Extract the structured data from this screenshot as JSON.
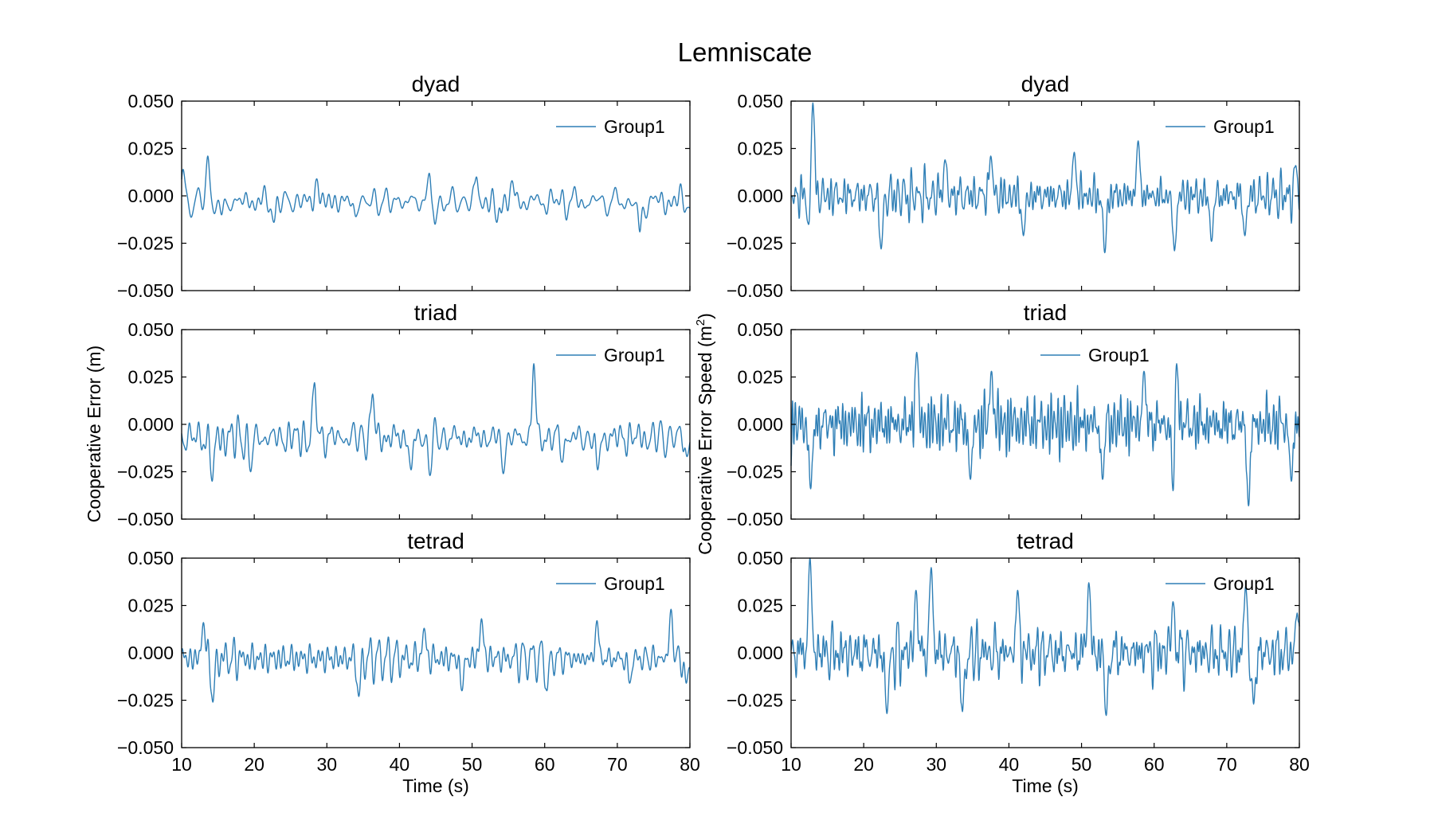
{
  "figure": {
    "suptitle": "Lemniscate",
    "left_ylabel": "Cooperative Error (m)",
    "right_ylabel": "Cooperative Error Speed (m",
    "right_ylabel_sup": "2",
    "right_ylabel_end": ")",
    "xlabel": "Time (s)"
  },
  "colors": {
    "series": "#2f7fb6",
    "axes": "#000000",
    "background": "#ffffff"
  },
  "chart_data": [
    {
      "type": "line",
      "title": "dyad",
      "column": "left",
      "row": 0,
      "xlim": [
        10,
        80
      ],
      "ylim": [
        -0.05,
        0.05
      ],
      "xticks": [
        10,
        20,
        30,
        40,
        50,
        60,
        70,
        80
      ],
      "yticks": [
        -0.05,
        -0.025,
        0.0,
        0.025,
        0.05
      ],
      "ytick_labels": [
        "−0.050",
        "−0.025",
        "0.000",
        "0.025",
        "0.050"
      ],
      "legend": "upper right",
      "grid": false,
      "series": [
        {
          "name": "Group1",
          "color": "#2f7fb6",
          "amplitude": 0.006,
          "offset": -0.003,
          "freq_scale": 1.0,
          "seed": 11,
          "spikes": [
            [
              10.2,
              0.014
            ],
            [
              13.6,
              0.021
            ],
            [
              15.5,
              -0.01
            ],
            [
              22.7,
              -0.014
            ],
            [
              28.6,
              0.009
            ],
            [
              34.0,
              -0.011
            ],
            [
              44.1,
              0.012
            ],
            [
              44.9,
              -0.015
            ],
            [
              50.6,
              0.01
            ],
            [
              53.4,
              -0.014
            ],
            [
              55.5,
              0.008
            ],
            [
              73.1,
              -0.019
            ],
            [
              79.8,
              -0.006
            ]
          ]
        }
      ]
    },
    {
      "type": "line",
      "title": "dyad",
      "column": "right",
      "row": 0,
      "xlim": [
        10,
        80
      ],
      "ylim": [
        -0.05,
        0.05
      ],
      "xticks": [
        10,
        20,
        30,
        40,
        50,
        60,
        70,
        80
      ],
      "yticks": [
        -0.05,
        -0.025,
        0.0,
        0.025,
        0.05
      ],
      "ytick_labels": [
        "−0.050",
        "−0.025",
        "0.000",
        "0.025",
        "0.050"
      ],
      "legend": "upper right",
      "grid": false,
      "series": [
        {
          "name": "Group1",
          "color": "#2f7fb6",
          "amplitude": 0.009,
          "offset": 0.0,
          "freq_scale": 1.8,
          "seed": 23,
          "spikes": [
            [
              12.5,
              -0.019
            ],
            [
              13.0,
              0.049
            ],
            [
              22.4,
              -0.028
            ],
            [
              31.2,
              0.019
            ],
            [
              37.5,
              0.021
            ],
            [
              42.0,
              -0.021
            ],
            [
              49.0,
              0.023
            ],
            [
              53.2,
              -0.03
            ],
            [
              57.8,
              0.029
            ],
            [
              62.8,
              -0.029
            ],
            [
              67.9,
              -0.024
            ],
            [
              72.5,
              -0.021
            ],
            [
              79.5,
              0.016
            ]
          ]
        }
      ]
    },
    {
      "type": "line",
      "title": "triad",
      "column": "left",
      "row": 1,
      "xlim": [
        10,
        80
      ],
      "ylim": [
        -0.05,
        0.05
      ],
      "xticks": [
        10,
        20,
        30,
        40,
        50,
        60,
        70,
        80
      ],
      "yticks": [
        -0.05,
        -0.025,
        0.0,
        0.025,
        0.05
      ],
      "ytick_labels": [
        "−0.050",
        "−0.025",
        "0.000",
        "0.025",
        "0.050"
      ],
      "legend": "upper right",
      "grid": false,
      "series": [
        {
          "name": "Group1",
          "color": "#2f7fb6",
          "amplitude": 0.009,
          "offset": -0.007,
          "freq_scale": 1.2,
          "seed": 37,
          "spikes": [
            [
              14.2,
              -0.03
            ],
            [
              19.5,
              -0.025
            ],
            [
              28.3,
              0.022
            ],
            [
              36.3,
              0.016
            ],
            [
              41.6,
              -0.024
            ],
            [
              44.2,
              -0.027
            ],
            [
              54.3,
              -0.026
            ],
            [
              58.5,
              0.032
            ],
            [
              62.4,
              -0.02
            ],
            [
              67.3,
              -0.024
            ],
            [
              79.6,
              -0.017
            ]
          ]
        }
      ]
    },
    {
      "type": "line",
      "title": "triad",
      "column": "right",
      "row": 1,
      "xlim": [
        10,
        80
      ],
      "ylim": [
        -0.05,
        0.05
      ],
      "xticks": [
        10,
        20,
        30,
        40,
        50,
        60,
        70,
        80
      ],
      "yticks": [
        -0.05,
        -0.025,
        0.0,
        0.025,
        0.05
      ],
      "ytick_labels": [
        "−0.050",
        "−0.025",
        "0.000",
        "0.025",
        "0.050"
      ],
      "legend": "upper center",
      "grid": false,
      "series": [
        {
          "name": "Group1",
          "color": "#2f7fb6",
          "amplitude": 0.012,
          "offset": 0.0,
          "freq_scale": 2.0,
          "seed": 41,
          "spikes": [
            [
              12.7,
              -0.034
            ],
            [
              27.3,
              0.038
            ],
            [
              34.7,
              -0.029
            ],
            [
              37.6,
              0.028
            ],
            [
              52.9,
              -0.029
            ],
            [
              58.6,
              0.028
            ],
            [
              62.7,
              -0.046
            ],
            [
              63.1,
              0.032
            ],
            [
              73.0,
              -0.043
            ],
            [
              78.9,
              -0.03
            ]
          ]
        }
      ]
    },
    {
      "type": "line",
      "title": "tetrad",
      "column": "left",
      "row": 2,
      "xlim": [
        10,
        80
      ],
      "ylim": [
        -0.05,
        0.05
      ],
      "xticks": [
        10,
        20,
        30,
        40,
        50,
        60,
        70,
        80
      ],
      "yticks": [
        -0.05,
        -0.025,
        0.0,
        0.025,
        0.05
      ],
      "ytick_labels": [
        "−0.050",
        "−0.025",
        "0.000",
        "0.025",
        "0.050"
      ],
      "legend": "upper right",
      "grid": false,
      "series": [
        {
          "name": "Group1",
          "color": "#2f7fb6",
          "amplitude": 0.008,
          "offset": -0.003,
          "freq_scale": 1.5,
          "seed": 53,
          "spikes": [
            [
              13.0,
              0.016
            ],
            [
              14.3,
              -0.026
            ],
            [
              34.4,
              -0.023
            ],
            [
              43.4,
              0.013
            ],
            [
              48.6,
              -0.02
            ],
            [
              51.3,
              0.018
            ],
            [
              60.3,
              -0.02
            ],
            [
              67.2,
              0.017
            ],
            [
              71.7,
              -0.016
            ],
            [
              77.4,
              0.023
            ],
            [
              79.5,
              -0.016
            ]
          ]
        }
      ]
    },
    {
      "type": "line",
      "title": "tetrad",
      "column": "right",
      "row": 2,
      "xlim": [
        10,
        80
      ],
      "ylim": [
        -0.05,
        0.05
      ],
      "xticks": [
        10,
        20,
        30,
        40,
        50,
        60,
        70,
        80
      ],
      "yticks": [
        -0.05,
        -0.025,
        0.0,
        0.025,
        0.05
      ],
      "ytick_labels": [
        "−0.050",
        "−0.025",
        "0.000",
        "0.025",
        "0.050"
      ],
      "legend": "upper right",
      "grid": false,
      "series": [
        {
          "name": "Group1",
          "color": "#2f7fb6",
          "amplitude": 0.012,
          "offset": 0.0,
          "freq_scale": 2.0,
          "seed": 67,
          "spikes": [
            [
              12.6,
              0.05
            ],
            [
              23.2,
              -0.032
            ],
            [
              27.2,
              0.033
            ],
            [
              29.3,
              0.045
            ],
            [
              33.6,
              -0.031
            ],
            [
              41.2,
              0.033
            ],
            [
              51.0,
              0.037
            ],
            [
              53.4,
              -0.033
            ],
            [
              62.6,
              0.027
            ],
            [
              72.6,
              0.035
            ],
            [
              73.7,
              -0.027
            ],
            [
              79.7,
              0.021
            ]
          ]
        }
      ]
    }
  ]
}
